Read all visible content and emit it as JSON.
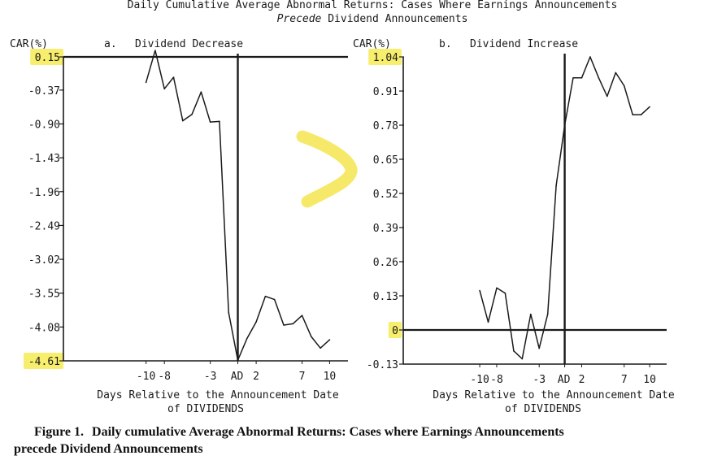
{
  "header": {
    "line1": "Daily Cumulative Average Abnormal Returns:  Cases Where Earnings Announcements",
    "line2_emph": "Precede",
    "line2_rest": " Dividend Announcements"
  },
  "caption": {
    "label": "Figure 1.",
    "text": "Daily cumulative Average Abnormal Returns: Cases where Earnings Announcements",
    "text2": "precede Dividend Announcements"
  },
  "colors": {
    "ink": "#1a1a1a",
    "highlight": "#f7ee6e"
  },
  "annotation": {
    "shape": "hand-drawn greater-than mark",
    "color": "#f5e75a"
  },
  "chart_data": [
    {
      "type": "line",
      "panel_label": "a.",
      "title": "Dividend Decrease",
      "ylabel": "CAR(%)",
      "xlabel": "Days Relative to the Announcement Date",
      "xlabel2": "of DIVIDENDS",
      "y_ticks": [
        "0.15",
        "-0.37",
        "-0.90",
        "-1.43",
        "-1.96",
        "-2.49",
        "-3.02",
        "-3.55",
        "-4.08",
        "-4.61"
      ],
      "highlighted_ticks": [
        "0.15",
        "-4.61"
      ],
      "x_ticks": [
        "-10",
        "-8",
        "-3",
        "AD",
        "2",
        "7",
        "10"
      ],
      "x_tick_values": [
        -10,
        -8,
        -3,
        0,
        2,
        7,
        10
      ],
      "xlim": [
        -19,
        12
      ],
      "ylim": [
        -4.61,
        0.15
      ],
      "hline": 0.15,
      "vline": 0,
      "series": [
        {
          "x": [
            -10,
            -9,
            -8,
            -7,
            -6,
            -5,
            -4,
            -3,
            -2,
            -1,
            0,
            1,
            2,
            3,
            4,
            5,
            6,
            7,
            8,
            9,
            10
          ],
          "y": [
            -0.25,
            0.25,
            -0.35,
            -0.17,
            -0.85,
            -0.75,
            -0.4,
            -0.87,
            -0.86,
            -3.85,
            -4.6,
            -4.26,
            -4.0,
            -3.6,
            -3.65,
            -4.05,
            -4.03,
            -3.9,
            -4.23,
            -4.41,
            -4.28
          ]
        }
      ]
    },
    {
      "type": "line",
      "panel_label": "b.",
      "title": "Dividend Increase",
      "ylabel": "CAR(%)",
      "xlabel": "Days Relative to the Announcement Date",
      "xlabel2": "of DIVIDENDS",
      "y_ticks": [
        "1.04",
        "0.91",
        "0.78",
        "0.65",
        "0.52",
        "0.39",
        "0.26",
        "0.13",
        "0",
        "-0.13"
      ],
      "highlighted_ticks": [
        "1.04",
        "0"
      ],
      "x_ticks": [
        "-10",
        "-8",
        "-3",
        "AD",
        "2",
        "7",
        "10"
      ],
      "x_tick_values": [
        -10,
        -8,
        -3,
        0,
        2,
        7,
        10
      ],
      "xlim": [
        -19,
        12
      ],
      "ylim": [
        -0.13,
        1.04
      ],
      "hline": 0,
      "vline": 0,
      "series": [
        {
          "x": [
            -10,
            -9,
            -8,
            -7,
            -6,
            -5,
            -4,
            -3,
            -2,
            -1,
            0,
            1,
            2,
            3,
            4,
            5,
            6,
            7,
            8,
            9,
            10
          ],
          "y": [
            0.15,
            0.03,
            0.16,
            0.14,
            -0.08,
            -0.11,
            0.06,
            -0.07,
            0.06,
            0.55,
            0.78,
            0.96,
            0.96,
            1.04,
            0.96,
            0.89,
            0.98,
            0.93,
            0.82,
            0.82,
            0.85
          ]
        }
      ]
    }
  ]
}
